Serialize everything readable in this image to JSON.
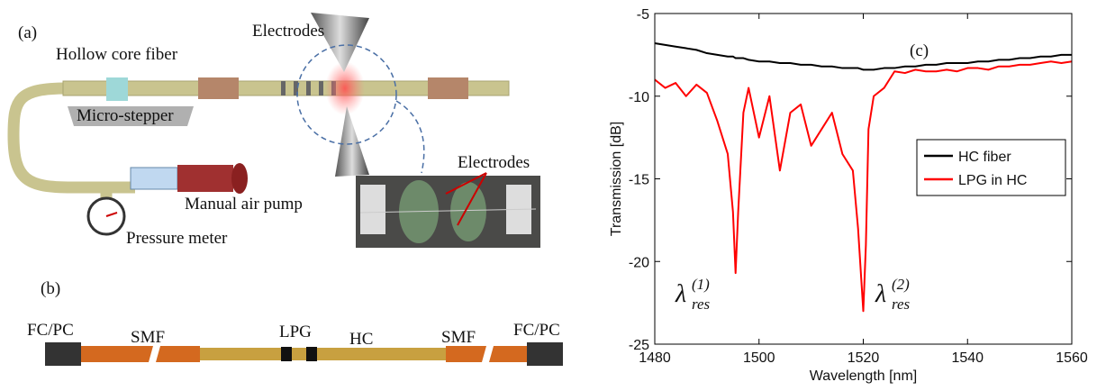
{
  "panel_a": {
    "label": "(a)",
    "fiber": "Hollow core fiber",
    "electrodes": "Electrodes",
    "stepper": "Micro-stepper",
    "pump": "Manual air pump",
    "meter": "Pressure meter",
    "inset_electrodes": "Electrodes"
  },
  "panel_b": {
    "label": "(b)",
    "left_connector": "FC/PC",
    "left_smf": "SMF",
    "lpg": "LPG",
    "hc": "HC",
    "right_smf": "SMF",
    "right_connector": "FC/PC"
  },
  "chart_data": {
    "type": "line",
    "panel_label": "(c)",
    "x_label": "Wavelength [nm]",
    "y_label": "Transmission [dB]",
    "x": [
      1480,
      1482,
      1484,
      1486,
      1488,
      1490,
      1492,
      1494,
      1495,
      1495.5,
      1496,
      1497,
      1498,
      1500,
      1502,
      1504,
      1506,
      1508,
      1510,
      1512,
      1514,
      1516,
      1518,
      1519,
      1520,
      1520.5,
      1521,
      1522,
      1524,
      1526,
      1528,
      1530,
      1532,
      1534,
      1536,
      1538,
      1540,
      1542,
      1544,
      1546,
      1548,
      1550,
      1552,
      1554,
      1556,
      1558,
      1560
    ],
    "series": [
      {
        "name": "HC fiber",
        "color": "#000000",
        "values": [
          -6.8,
          -6.9,
          -7.0,
          -7.1,
          -7.2,
          -7.4,
          -7.5,
          -7.6,
          -7.6,
          -7.7,
          -7.7,
          -7.7,
          -7.8,
          -7.9,
          -7.9,
          -8.0,
          -8.0,
          -8.1,
          -8.1,
          -8.2,
          -8.2,
          -8.3,
          -8.3,
          -8.3,
          -8.4,
          -8.4,
          -8.4,
          -8.4,
          -8.3,
          -8.3,
          -8.2,
          -8.2,
          -8.1,
          -8.1,
          -8.0,
          -8.0,
          -8.0,
          -7.9,
          -7.9,
          -7.8,
          -7.8,
          -7.7,
          -7.7,
          -7.6,
          -7.6,
          -7.5,
          -7.5
        ]
      },
      {
        "name": "LPG in HC",
        "color": "#ff0000",
        "values": [
          -9.0,
          -9.5,
          -9.2,
          -10.0,
          -9.3,
          -9.8,
          -11.5,
          -13.5,
          -17,
          -20.7,
          -17,
          -11,
          -9.5,
          -12.5,
          -10,
          -14.5,
          -11,
          -10.5,
          -13,
          -12,
          -11,
          -13.5,
          -14.5,
          -18,
          -23,
          -19,
          -12,
          -10,
          -9.5,
          -8.5,
          -8.6,
          -8.4,
          -8.5,
          -8.5,
          -8.4,
          -8.5,
          -8.3,
          -8.3,
          -8.4,
          -8.2,
          -8.2,
          -8.1,
          -8.1,
          -8.0,
          -7.9,
          -8.0,
          -7.9
        ]
      }
    ],
    "xlim": [
      1480,
      1560
    ],
    "xticks": [
      1480,
      1500,
      1520,
      1540,
      1560
    ],
    "ylim": [
      -25,
      -5
    ],
    "yticks": [
      -25,
      -20,
      -15,
      -10,
      -5
    ],
    "grid": false,
    "legend": "center right",
    "annotations": [
      {
        "symbol": "λ",
        "sub": "res",
        "sup": "(1)"
      },
      {
        "symbol": "λ",
        "sub": "res",
        "sup": "(2)"
      }
    ]
  }
}
